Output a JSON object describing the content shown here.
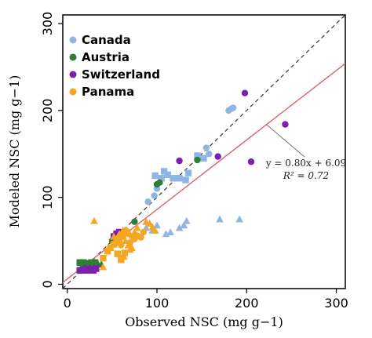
{
  "chart_data": {
    "type": "scatter",
    "xlabel": "Observed NSC (mg g−1)",
    "ylabel": "Modeled NSC (mg g−1)",
    "xlim": [
      -5,
      310
    ],
    "ylim": [
      -5,
      310
    ],
    "xticks": [
      0,
      100,
      200,
      300
    ],
    "yticks": [
      0,
      100,
      200,
      300
    ],
    "xtick_labels": [
      "0",
      "100",
      "200",
      "300"
    ],
    "ytick_labels": [
      "0",
      "100",
      "200",
      "300"
    ],
    "grid": false,
    "legend_position": "top-left",
    "one_to_one_line": {
      "style": "dashed",
      "color": "#333333"
    },
    "fit_line": {
      "slope": 0.8,
      "intercept": 6.09,
      "color": "#d9666f"
    },
    "annotation": {
      "equation": "y = 0.80x + 6.09",
      "r2": "R² = 0.72",
      "points_to_x": 225
    },
    "series": [
      {
        "name": "Canada",
        "color": "#8fb6e2",
        "markers": "circle+square+triangle",
        "points": [
          {
            "x": 180,
            "y": 200,
            "m": "circle"
          },
          {
            "x": 183,
            "y": 202,
            "m": "circle"
          },
          {
            "x": 185,
            "y": 203,
            "m": "circle"
          },
          {
            "x": 155,
            "y": 157,
            "m": "circle"
          },
          {
            "x": 158,
            "y": 150,
            "m": "circle"
          },
          {
            "x": 100,
            "y": 110,
            "m": "circle"
          },
          {
            "x": 97,
            "y": 102,
            "m": "circle"
          },
          {
            "x": 90,
            "y": 95,
            "m": "circle"
          },
          {
            "x": 98,
            "y": 125,
            "m": "square"
          },
          {
            "x": 105,
            "y": 122,
            "m": "square"
          },
          {
            "x": 108,
            "y": 130,
            "m": "square"
          },
          {
            "x": 112,
            "y": 126,
            "m": "square"
          },
          {
            "x": 118,
            "y": 122,
            "m": "square"
          },
          {
            "x": 125,
            "y": 122,
            "m": "square"
          },
          {
            "x": 132,
            "y": 120,
            "m": "square"
          },
          {
            "x": 135,
            "y": 128,
            "m": "square"
          },
          {
            "x": 145,
            "y": 148,
            "m": "square"
          },
          {
            "x": 152,
            "y": 145,
            "m": "square"
          },
          {
            "x": 88,
            "y": 65,
            "m": "triangle"
          },
          {
            "x": 95,
            "y": 62,
            "m": "triangle"
          },
          {
            "x": 100,
            "y": 68,
            "m": "triangle"
          },
          {
            "x": 110,
            "y": 58,
            "m": "triangle"
          },
          {
            "x": 115,
            "y": 60,
            "m": "triangle"
          },
          {
            "x": 125,
            "y": 65,
            "m": "triangle"
          },
          {
            "x": 130,
            "y": 68,
            "m": "triangle"
          },
          {
            "x": 133,
            "y": 73,
            "m": "triangle"
          },
          {
            "x": 170,
            "y": 75,
            "m": "triangle"
          },
          {
            "x": 192,
            "y": 75,
            "m": "triangle"
          }
        ]
      },
      {
        "name": "Austria",
        "color": "#2f7d32",
        "markers": "circle+square+triangle",
        "points": [
          {
            "x": 145,
            "y": 143,
            "m": "circle"
          },
          {
            "x": 100,
            "y": 115,
            "m": "circle"
          },
          {
            "x": 103,
            "y": 117,
            "m": "circle"
          },
          {
            "x": 75,
            "y": 72,
            "m": "circle"
          },
          {
            "x": 50,
            "y": 50,
            "m": "circle"
          },
          {
            "x": 14,
            "y": 25,
            "m": "square"
          },
          {
            "x": 18,
            "y": 25,
            "m": "square"
          },
          {
            "x": 22,
            "y": 24,
            "m": "square"
          },
          {
            "x": 27,
            "y": 25,
            "m": "square"
          },
          {
            "x": 31,
            "y": 25,
            "m": "square"
          },
          {
            "x": 17,
            "y": 22,
            "m": "triangle"
          },
          {
            "x": 22,
            "y": 21,
            "m": "triangle"
          },
          {
            "x": 26,
            "y": 23,
            "m": "triangle"
          },
          {
            "x": 30,
            "y": 26,
            "m": "triangle"
          },
          {
            "x": 34,
            "y": 24,
            "m": "triangle"
          },
          {
            "x": 38,
            "y": 23,
            "m": "triangle"
          }
        ]
      },
      {
        "name": "Switzerland",
        "color": "#7a1fb0",
        "markers": "circle+square+triangle",
        "points": [
          {
            "x": 198,
            "y": 220,
            "m": "circle"
          },
          {
            "x": 243,
            "y": 184,
            "m": "circle"
          },
          {
            "x": 125,
            "y": 142,
            "m": "circle"
          },
          {
            "x": 168,
            "y": 147,
            "m": "circle"
          },
          {
            "x": 205,
            "y": 141,
            "m": "circle"
          },
          {
            "x": 14,
            "y": 16,
            "m": "square"
          },
          {
            "x": 17,
            "y": 16,
            "m": "square"
          },
          {
            "x": 20,
            "y": 17,
            "m": "square"
          },
          {
            "x": 23,
            "y": 16,
            "m": "square"
          },
          {
            "x": 26,
            "y": 17,
            "m": "square"
          },
          {
            "x": 29,
            "y": 16,
            "m": "square"
          },
          {
            "x": 32,
            "y": 18,
            "m": "square"
          },
          {
            "x": 52,
            "y": 55,
            "m": "square"
          },
          {
            "x": 55,
            "y": 58,
            "m": "square"
          },
          {
            "x": 58,
            "y": 60,
            "m": "square"
          },
          {
            "x": 20,
            "y": 19,
            "m": "triangle"
          },
          {
            "x": 25,
            "y": 19,
            "m": "triangle"
          },
          {
            "x": 30,
            "y": 19,
            "m": "triangle"
          }
        ]
      },
      {
        "name": "Panama",
        "color": "#f5a623",
        "markers": "circle+square+triangle",
        "points": [
          {
            "x": 65,
            "y": 62,
            "m": "circle"
          },
          {
            "x": 68,
            "y": 58,
            "m": "circle"
          },
          {
            "x": 72,
            "y": 55,
            "m": "circle"
          },
          {
            "x": 75,
            "y": 52,
            "m": "circle"
          },
          {
            "x": 70,
            "y": 48,
            "m": "circle"
          },
          {
            "x": 78,
            "y": 56,
            "m": "circle"
          },
          {
            "x": 82,
            "y": 54,
            "m": "circle"
          },
          {
            "x": 60,
            "y": 45,
            "m": "circle"
          },
          {
            "x": 85,
            "y": 60,
            "m": "circle"
          },
          {
            "x": 40,
            "y": 30,
            "m": "square"
          },
          {
            "x": 45,
            "y": 38,
            "m": "square"
          },
          {
            "x": 48,
            "y": 42,
            "m": "square"
          },
          {
            "x": 52,
            "y": 46,
            "m": "square"
          },
          {
            "x": 55,
            "y": 48,
            "m": "square"
          },
          {
            "x": 58,
            "y": 52,
            "m": "square"
          },
          {
            "x": 62,
            "y": 55,
            "m": "square"
          },
          {
            "x": 66,
            "y": 60,
            "m": "square"
          },
          {
            "x": 56,
            "y": 35,
            "m": "square"
          },
          {
            "x": 60,
            "y": 30,
            "m": "square"
          },
          {
            "x": 64,
            "y": 36,
            "m": "square"
          },
          {
            "x": 30,
            "y": 73,
            "m": "triangle"
          },
          {
            "x": 48,
            "y": 42,
            "m": "triangle"
          },
          {
            "x": 52,
            "y": 55,
            "m": "triangle"
          },
          {
            "x": 55,
            "y": 50,
            "m": "triangle"
          },
          {
            "x": 58,
            "y": 58,
            "m": "triangle"
          },
          {
            "x": 62,
            "y": 62,
            "m": "triangle"
          },
          {
            "x": 65,
            "y": 50,
            "m": "triangle"
          },
          {
            "x": 68,
            "y": 45,
            "m": "triangle"
          },
          {
            "x": 70,
            "y": 40,
            "m": "triangle"
          },
          {
            "x": 72,
            "y": 42,
            "m": "triangle"
          },
          {
            "x": 75,
            "y": 60,
            "m": "triangle"
          },
          {
            "x": 78,
            "y": 65,
            "m": "triangle"
          },
          {
            "x": 88,
            "y": 72,
            "m": "triangle"
          },
          {
            "x": 92,
            "y": 70,
            "m": "triangle"
          },
          {
            "x": 95,
            "y": 66,
            "m": "triangle"
          },
          {
            "x": 98,
            "y": 62,
            "m": "triangle"
          },
          {
            "x": 60,
            "y": 28,
            "m": "triangle"
          },
          {
            "x": 63,
            "y": 32,
            "m": "triangle"
          },
          {
            "x": 40,
            "y": 20,
            "m": "triangle"
          }
        ]
      }
    ]
  }
}
